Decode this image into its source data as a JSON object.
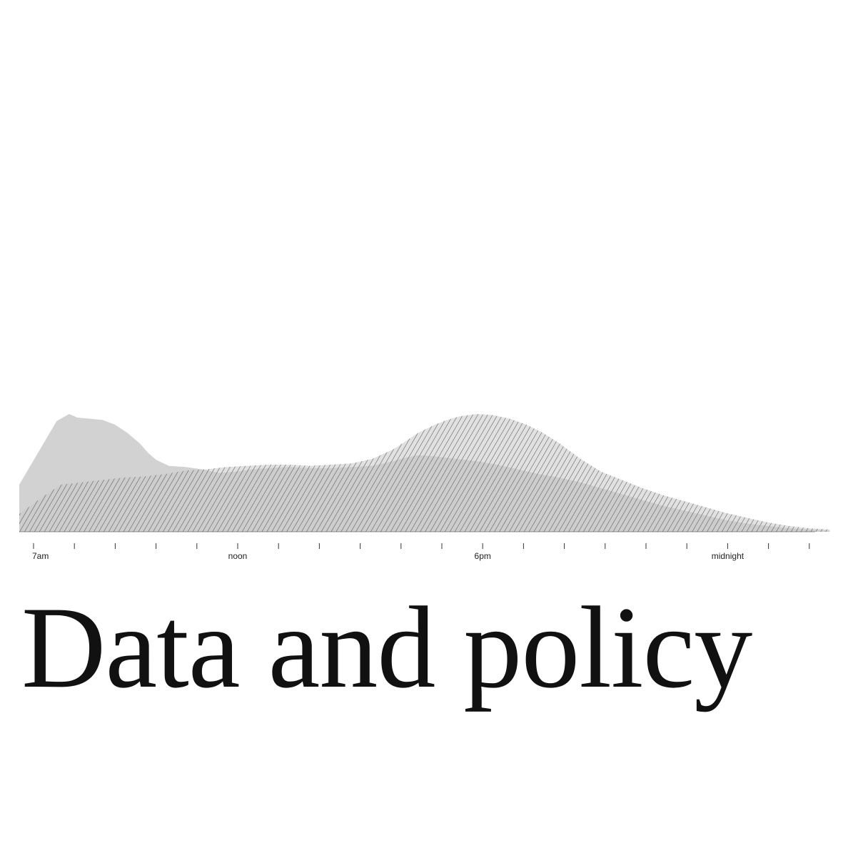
{
  "headline": "Data and policy",
  "colors": {
    "solid_area": "#d2d2d2",
    "hatch_area": "#c8c8c8",
    "hatch_stroke": "#555555",
    "axis": "#333333"
  },
  "chart_data": {
    "type": "area",
    "x_unit": "hours after 7am",
    "xlim": [
      0,
      19.5
    ],
    "ylim": [
      0,
      100
    ],
    "tick_hours": [
      0,
      1,
      2,
      3,
      4,
      5,
      6,
      7,
      8,
      9,
      10,
      11,
      12,
      13,
      14,
      15,
      16,
      17,
      18,
      19
    ],
    "tick_labels": [
      {
        "hour": 0,
        "label": "7am"
      },
      {
        "hour": 5,
        "label": "noon"
      },
      {
        "hour": 11,
        "label": "6pm"
      },
      {
        "hour": 17,
        "label": "midnight"
      }
    ],
    "series": [
      {
        "style": "solid",
        "x": [
          0,
          0.3,
          0.6,
          0.9,
          1.2,
          1.4,
          1.7,
          2.0,
          2.3,
          2.6,
          2.9,
          3.1,
          3.3,
          3.6,
          4.0,
          4.4,
          4.8,
          5.2,
          5.6,
          6.0,
          6.5,
          7.0,
          7.5,
          8.0,
          8.5,
          9.0,
          9.3,
          9.6,
          10.0,
          10.5,
          11.0,
          11.5,
          12.0,
          12.5,
          13.0,
          13.5,
          14.0,
          14.5,
          15.0,
          15.5,
          16.0,
          16.5,
          17.0,
          17.5,
          18.0,
          18.5,
          19.0,
          19.5
        ],
        "y": [
          40,
          58,
          76,
          94,
          100,
          97,
          96,
          95,
          91,
          84,
          75,
          67,
          61,
          56,
          55,
          53,
          50,
          51,
          53,
          54,
          55,
          54,
          54,
          55,
          56,
          60,
          63,
          65,
          64,
          62,
          60,
          57,
          53,
          49,
          46,
          42,
          37,
          32,
          27,
          22,
          18,
          14,
          10,
          7,
          5,
          3,
          2,
          1
        ]
      },
      {
        "style": "hatched",
        "x": [
          0,
          0.5,
          1.0,
          1.5,
          2.0,
          2.5,
          3.0,
          3.5,
          4.0,
          4.5,
          5.0,
          5.5,
          6.0,
          6.5,
          7.0,
          7.5,
          8.0,
          8.5,
          9.0,
          9.3,
          9.6,
          10.0,
          10.3,
          10.6,
          11.0,
          11.4,
          11.8,
          12.2,
          12.6,
          13.0,
          13.5,
          14.0,
          14.5,
          15.0,
          15.5,
          16.0,
          16.5,
          17.0,
          17.5,
          18.0,
          18.5,
          19.0,
          19.5
        ],
        "y": [
          15,
          28,
          40,
          42,
          44,
          46,
          47,
          49,
          52,
          53,
          55,
          56,
          57,
          57,
          56,
          57,
          58,
          62,
          70,
          77,
          84,
          91,
          95,
          98,
          100,
          99,
          96,
          91,
          84,
          75,
          62,
          51,
          44,
          37,
          31,
          26,
          21,
          16,
          12,
          8,
          5,
          3,
          2
        ]
      }
    ]
  }
}
